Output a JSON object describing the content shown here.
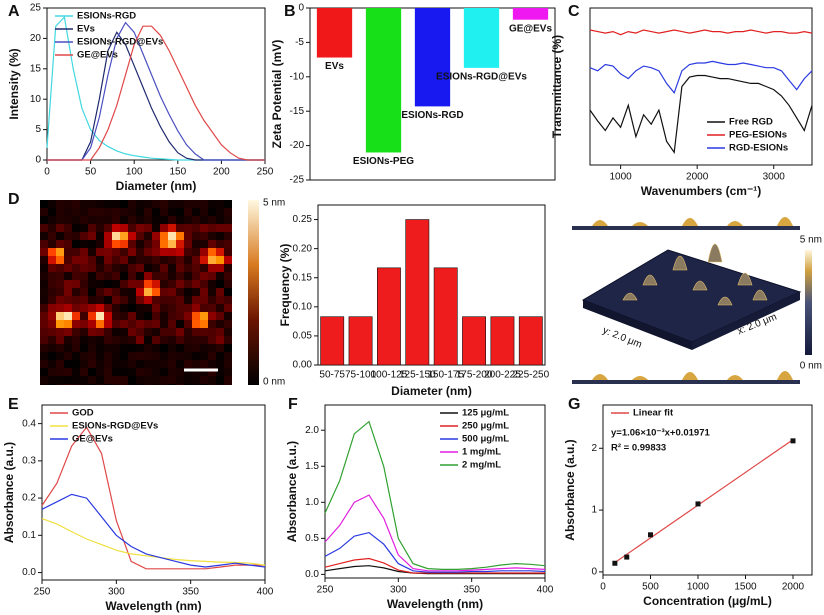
{
  "chart_data": [
    {
      "type": "line",
      "panel": "A",
      "xlabel": "Diameter (nm)",
      "ylabel": "Intensity (%)",
      "x": [
        0,
        10,
        20,
        30,
        40,
        50,
        60,
        70,
        80,
        90,
        100,
        110,
        120,
        130,
        140,
        150,
        160,
        170,
        180,
        190,
        200,
        210,
        220,
        230,
        240,
        250
      ],
      "series": [
        {
          "name": "ESIONs-RGD",
          "color": "#40d8e0",
          "values": [
            2,
            22,
            23.5,
            15,
            8.5,
            5,
            3.2,
            2.2,
            1.5,
            1,
            0.7,
            0.5,
            0.3,
            0.2,
            0.1,
            0,
            0,
            0,
            0,
            0,
            0,
            0,
            0,
            0,
            0,
            0
          ]
        },
        {
          "name": "EVs",
          "color": "#1f2a6e",
          "values": [
            0,
            0,
            0,
            0,
            0,
            3,
            10,
            18,
            21,
            19,
            15.5,
            12,
            8.5,
            5.5,
            3,
            1.2,
            0.3,
            0,
            0,
            0,
            0,
            0,
            0,
            0,
            0,
            0
          ]
        },
        {
          "name": "ESIONs-RGD@EVs",
          "color": "#4a4fc0",
          "values": [
            0,
            0,
            0,
            0,
            0,
            2,
            7,
            14,
            20,
            22.6,
            21,
            17.5,
            14,
            10.5,
            7.5,
            4.8,
            2.5,
            1,
            0,
            0,
            0,
            0,
            0,
            0,
            0,
            0
          ]
        },
        {
          "name": "GE@EVs",
          "color": "#e04848",
          "values": [
            0,
            0,
            0,
            0,
            0,
            0,
            2,
            5,
            9,
            14,
            19,
            22,
            22,
            20.5,
            18,
            15,
            12,
            9,
            6.5,
            4.5,
            2.5,
            1.2,
            0.3,
            0,
            0,
            0
          ]
        }
      ],
      "xlim": [
        0,
        250
      ],
      "ylim": [
        0,
        25
      ],
      "xticks": [
        0,
        50,
        100,
        150,
        200,
        250
      ],
      "yticks": [
        0,
        5,
        10,
        15,
        20,
        25
      ],
      "legend": "upper left"
    },
    {
      "type": "bar",
      "panel": "B",
      "ylabel": "Zeta Potential (mV)",
      "categories": [
        "EVs",
        "ESIONs-PEG",
        "ESIONs-RGD",
        "ESIONs-RGD@EVs",
        "GE@EVs"
      ],
      "values": [
        -7.2,
        -21,
        -14.3,
        -8.7,
        -1.7
      ],
      "colors": [
        "#f01818",
        "#18e018",
        "#1818f0",
        "#20f0f0",
        "#f018f0"
      ],
      "ylim": [
        -25,
        0
      ],
      "yticks": [
        0,
        -5,
        -10,
        -15,
        -20,
        -25
      ],
      "labels_at_bar_end": true
    },
    {
      "type": "line",
      "panel": "C",
      "xlabel": "Wavenumbers (cm⁻¹)",
      "ylabel": "Transmittance (%)",
      "x": [
        600,
        700,
        800,
        900,
        1000,
        1100,
        1200,
        1300,
        1400,
        1500,
        1600,
        1700,
        1800,
        1900,
        2000,
        2100,
        2200,
        2300,
        2400,
        2500,
        2600,
        2700,
        2800,
        2900,
        3000,
        3100,
        3200,
        3300,
        3400,
        3500
      ],
      "series": [
        {
          "name": "Free RGD",
          "color": "#111111",
          "values": [
            35,
            28,
            22,
            30,
            24,
            38,
            18,
            32,
            26,
            35,
            15,
            8,
            50,
            56,
            57,
            57,
            56,
            55,
            55,
            54,
            53,
            52,
            52,
            50,
            48,
            44,
            38,
            30,
            22,
            38
          ]
        },
        {
          "name": "PEG-ESIONs",
          "color": "#e02020",
          "values": [
            86,
            85,
            84,
            85,
            83,
            85,
            84,
            86,
            85,
            84,
            85,
            86,
            85,
            84,
            85,
            86,
            85,
            85,
            84,
            85,
            85,
            86,
            85,
            84,
            85,
            85,
            84,
            84,
            85,
            84
          ]
        },
        {
          "name": "RGD-ESIONs",
          "color": "#2a3ae0",
          "values": [
            62,
            60,
            64,
            63,
            58,
            55,
            60,
            63,
            62,
            60,
            52,
            46,
            60,
            64,
            65,
            65,
            66,
            65,
            64,
            64,
            65,
            64,
            63,
            62,
            62,
            60,
            54,
            48,
            55,
            60
          ]
        }
      ],
      "xlim": [
        600,
        3500
      ],
      "ylim": [
        0,
        100
      ],
      "xticks": [
        1000,
        2000,
        3000
      ],
      "legend": "lower right"
    },
    {
      "type": "image",
      "panel": "D",
      "colorbar_labels": [
        "5 nm",
        "0 nm"
      ]
    },
    {
      "type": "bar",
      "xlabel": "Diameter (nm)",
      "ylabel": "Frequency (%)",
      "categories": [
        "50-75",
        "75-100",
        "100-125",
        "125-150",
        "150-175",
        "175-200",
        "200-225",
        "225-250"
      ],
      "values": [
        0.083,
        0.083,
        0.167,
        0.25,
        0.167,
        0.083,
        0.083,
        0.083
      ],
      "color": "#ee1c1c",
      "ylim": [
        0,
        0.275
      ],
      "yticks": [
        {
          "value": 0,
          "label": "0.00"
        },
        {
          "value": 0.05,
          "label": "0.05"
        },
        {
          "value": 0.1,
          "label": "0.10"
        },
        {
          "value": 0.15,
          "label": "0.15"
        },
        {
          "value": 0.2,
          "label": "0.20"
        },
        {
          "value": 0.25,
          "label": "0.25"
        }
      ]
    },
    {
      "type": "surface",
      "x_label": "x: 2.0 μm",
      "y_label": "y: 2.0 μm",
      "colorbar_labels": [
        "5 nm",
        "0 nm"
      ]
    },
    {
      "type": "line",
      "panel": "E",
      "xlabel": "Wavelength (nm)",
      "ylabel": "Absorbance (a.u.)",
      "x": [
        250,
        260,
        270,
        280,
        290,
        300,
        310,
        320,
        330,
        340,
        350,
        360,
        370,
        380,
        390,
        400
      ],
      "series": [
        {
          "name": "GOD",
          "color": "#e04848",
          "values": [
            0.18,
            0.24,
            0.34,
            0.39,
            0.32,
            0.14,
            0.03,
            0.01,
            0.01,
            0.01,
            0.01,
            0.01,
            0.015,
            0.02,
            0.02,
            0.02
          ]
        },
        {
          "name": "ESIONs-RGD@EVs",
          "color": "#f0e040",
          "values": [
            0.145,
            0.13,
            0.11,
            0.09,
            0.075,
            0.06,
            0.05,
            0.045,
            0.04,
            0.035,
            0.032,
            0.03,
            0.028,
            0.027,
            0.025,
            0.02
          ]
        },
        {
          "name": "GE@EVs",
          "color": "#2a3ae0",
          "values": [
            0.17,
            0.19,
            0.21,
            0.2,
            0.15,
            0.1,
            0.07,
            0.05,
            0.04,
            0.03,
            0.02,
            0.015,
            0.02,
            0.025,
            0.02,
            0.015
          ]
        }
      ],
      "xlim": [
        250,
        400
      ],
      "ylim": [
        -0.02,
        0.45
      ],
      "xticks": [
        250,
        300,
        350,
        400
      ],
      "yticks": [
        {
          "value": 0,
          "label": "0.0"
        },
        {
          "value": 0.1,
          "label": "0.1"
        },
        {
          "value": 0.2,
          "label": "0.2"
        },
        {
          "value": 0.3,
          "label": "0.3"
        },
        {
          "value": 0.4,
          "label": "0.4"
        }
      ],
      "legend": "upper left"
    },
    {
      "type": "line",
      "panel": "F",
      "xlabel": "Wavelength (nm)",
      "ylabel": "Absorbance (a.u.)",
      "x": [
        250,
        260,
        270,
        280,
        290,
        300,
        310,
        320,
        330,
        340,
        350,
        360,
        370,
        380,
        390,
        400
      ],
      "series": [
        {
          "name": "125 μg/mL",
          "color": "#111111",
          "values": [
            0.05,
            0.08,
            0.11,
            0.12,
            0.09,
            0.04,
            0.02,
            0.01,
            0.01,
            0.01,
            0.01,
            0.01,
            0.01,
            0.01,
            0.01,
            0.01
          ]
        },
        {
          "name": "250 μg/mL",
          "color": "#e02020",
          "values": [
            0.1,
            0.15,
            0.2,
            0.22,
            0.16,
            0.06,
            0.02,
            0.02,
            0.02,
            0.02,
            0.02,
            0.02,
            0.02,
            0.02,
            0.02,
            0.02
          ]
        },
        {
          "name": "500 μg/mL",
          "color": "#2a3ae0",
          "values": [
            0.25,
            0.36,
            0.53,
            0.58,
            0.42,
            0.15,
            0.05,
            0.03,
            0.03,
            0.03,
            0.04,
            0.04,
            0.05,
            0.05,
            0.05,
            0.04
          ]
        },
        {
          "name": "1 mg/mL",
          "color": "#e020e0",
          "values": [
            0.45,
            0.68,
            1.0,
            1.1,
            0.78,
            0.27,
            0.08,
            0.05,
            0.05,
            0.05,
            0.06,
            0.07,
            0.08,
            0.09,
            0.08,
            0.07
          ]
        },
        {
          "name": "2 mg/mL",
          "color": "#30a030",
          "values": [
            0.85,
            1.3,
            1.95,
            2.12,
            1.5,
            0.5,
            0.15,
            0.08,
            0.07,
            0.07,
            0.08,
            0.1,
            0.13,
            0.15,
            0.14,
            0.12
          ]
        }
      ],
      "xlim": [
        250,
        400
      ],
      "ylim": [
        -0.05,
        2.35
      ],
      "xticks": [
        250,
        300,
        350,
        400
      ],
      "yticks": [
        {
          "value": 0,
          "label": "0.0"
        },
        {
          "value": 0.5,
          "label": "0.5"
        },
        {
          "value": 1,
          "label": "1.0"
        },
        {
          "value": 1.5,
          "label": "1.5"
        },
        {
          "value": 2,
          "label": "2.0"
        }
      ],
      "legend": "upper right"
    },
    {
      "type": "scatter",
      "panel": "G",
      "xlabel": "Concentration (μg/mL)",
      "ylabel": "Absorbance (a.u.)",
      "x": [
        125,
        250,
        500,
        1000,
        2000
      ],
      "values": [
        0.14,
        0.24,
        0.6,
        1.1,
        2.12
      ],
      "color": "#111111",
      "fit": {
        "name": "Linear fit",
        "color": "#e04848",
        "x": [
          125,
          2000
        ],
        "values": [
          0.152,
          2.14
        ]
      },
      "annotations": [
        "y=1.06×10⁻³x+0.01971",
        "R² = 0.99833"
      ],
      "xlim": [
        0,
        2200
      ],
      "ylim": [
        -0.05,
        2.7
      ],
      "xticks": [
        0,
        500,
        1000,
        1500,
        2000
      ],
      "yticks": [
        0,
        1,
        2
      ],
      "legend": "upper left"
    }
  ]
}
